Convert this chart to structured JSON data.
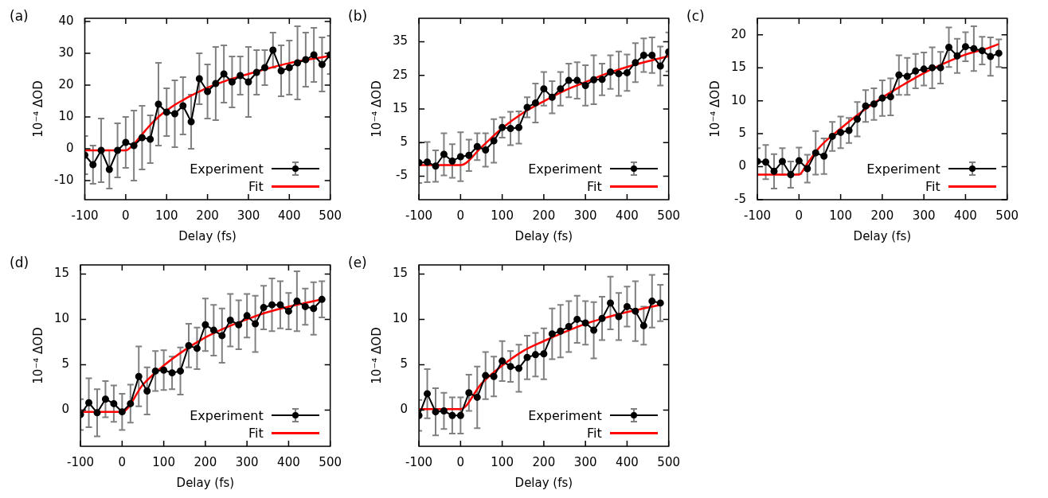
{
  "chart_data": [
    {
      "type": "line",
      "title": "(a)",
      "xlabel": "Delay (fs)",
      "ylabel": "10⁻⁴ ΔOD",
      "xlim": [
        -100,
        500
      ],
      "xticks": [
        -100,
        0,
        100,
        200,
        300,
        400,
        500
      ],
      "ylim": [
        -16,
        41
      ],
      "yticks": [
        -10,
        0,
        10,
        20,
        30,
        40
      ],
      "legend": "bottom right",
      "series": [
        {
          "name": "Experiment",
          "color": "#000000",
          "marker": "circle",
          "x": [
            -100,
            -80,
            -60,
            -40,
            -20,
            0,
            20,
            40,
            60,
            80,
            100,
            120,
            140,
            160,
            180,
            200,
            220,
            240,
            260,
            280,
            300,
            320,
            340,
            360,
            380,
            400,
            420,
            440,
            460,
            480,
            500
          ],
          "values": [
            -2,
            -5,
            -0.5,
            -6.5,
            -0.5,
            2,
            1,
            3.5,
            3,
            14,
            11.5,
            11,
            13.5,
            8.5,
            22,
            18,
            20.5,
            23.5,
            21,
            23,
            21,
            24,
            25.5,
            31,
            24.5,
            25.5,
            27,
            28,
            29.5,
            26.5,
            29.5
          ],
          "errors": [
            6,
            6,
            10,
            6,
            8.5,
            8,
            11,
            10,
            7.5,
            13,
            7.5,
            10.5,
            9,
            8.5,
            8,
            8.5,
            11.5,
            9,
            8,
            6,
            11,
            7,
            5.5,
            5.5,
            8,
            8.5,
            11.5,
            8.5,
            8.5,
            8.5,
            6
          ]
        },
        {
          "name": "Fit",
          "color": "#ff0000",
          "marker": "none",
          "x": [
            -100,
            0,
            20,
            40,
            60,
            80,
            100,
            120,
            140,
            160,
            180,
            200,
            250,
            300,
            350,
            400,
            450,
            500
          ],
          "values": [
            -0.5,
            -0.5,
            1.5,
            4.5,
            7.5,
            10,
            12,
            13.8,
            15.3,
            16.7,
            18,
            19.2,
            21.6,
            23.5,
            25.3,
            26.9,
            28.1,
            29.2
          ]
        }
      ]
    },
    {
      "type": "line",
      "title": "(b)",
      "xlabel": "Delay (fs)",
      "ylabel": "10⁻⁴ ΔOD",
      "xlim": [
        -100,
        500
      ],
      "xticks": [
        -100,
        0,
        100,
        200,
        300,
        400,
        500
      ],
      "ylim": [
        -12,
        42
      ],
      "yticks": [
        -5,
        5,
        15,
        25,
        35
      ],
      "legend": "bottom right",
      "series": [
        {
          "name": "Experiment",
          "color": "#000000",
          "marker": "circle",
          "x": [
            -100,
            -80,
            -60,
            -40,
            -20,
            0,
            20,
            40,
            60,
            80,
            100,
            120,
            140,
            160,
            180,
            200,
            220,
            240,
            260,
            280,
            300,
            320,
            340,
            360,
            380,
            400,
            420,
            440,
            460,
            480,
            500
          ],
          "values": [
            -1,
            -0.8,
            -2,
            1.5,
            -0.5,
            0.8,
            1.2,
            3.8,
            2.8,
            5.5,
            9.5,
            9.2,
            9.5,
            15.5,
            16.8,
            21,
            18.5,
            21,
            23.5,
            23.5,
            22,
            23.7,
            23.8,
            26,
            25.5,
            25.8,
            28.8,
            31,
            31,
            27.8,
            32
          ],
          "errors": [
            6,
            6,
            4.7,
            6.3,
            5,
            7.3,
            4.7,
            4,
            5,
            6.5,
            3,
            5,
            4.8,
            3,
            5.8,
            5,
            4.8,
            5,
            5,
            5.4,
            6,
            7.3,
            4.7,
            5,
            6.6,
            5.4,
            5.8,
            5,
            5.3,
            5.8,
            5.8
          ]
        },
        {
          "name": "Fit",
          "color": "#ff0000",
          "marker": "none",
          "x": [
            -100,
            0,
            50,
            100,
            150,
            200,
            250,
            300,
            350,
            400,
            450,
            500
          ],
          "values": [
            -1.7,
            -1.7,
            3.6,
            9.3,
            13.8,
            17.3,
            20.5,
            23,
            25.5,
            27.5,
            29.2,
            30.7
          ]
        }
      ]
    },
    {
      "type": "line",
      "title": "(c)",
      "xlabel": "Delay (fs)",
      "ylabel": "10⁻⁴ ΔOD",
      "xlim": [
        -100,
        500
      ],
      "xticks": [
        -100,
        0,
        100,
        200,
        300,
        400,
        500
      ],
      "ylim": [
        -5,
        22.5
      ],
      "yticks": [
        -5,
        0,
        5,
        10,
        15,
        20
      ],
      "legend": "bottom right",
      "series": [
        {
          "name": "Experiment",
          "color": "#000000",
          "marker": "circle",
          "x": [
            -100,
            -80,
            -60,
            -40,
            -20,
            0,
            20,
            40,
            60,
            80,
            100,
            120,
            140,
            160,
            180,
            200,
            220,
            240,
            260,
            280,
            300,
            320,
            340,
            360,
            380,
            400,
            420,
            440,
            460,
            480
          ],
          "values": [
            0.8,
            0.7,
            -0.7,
            0.8,
            -1.2,
            0.9,
            -0.3,
            2.1,
            1.6,
            4.6,
            5.2,
            5.5,
            7.2,
            9.2,
            9.5,
            10.4,
            10.6,
            13.9,
            13.7,
            14.5,
            14.8,
            15,
            15,
            18.1,
            16.8,
            18.2,
            17.9,
            17.6,
            16.7,
            17.2
          ],
          "errors": [
            2,
            2.6,
            2.6,
            2,
            2,
            2,
            2.1,
            3.3,
            2.7,
            2.2,
            2.4,
            1.9,
            2.6,
            2.4,
            2.4,
            2.7,
            2.8,
            3,
            2.8,
            2.6,
            2.5,
            3.1,
            2.4,
            3,
            2.6,
            2.2,
            3.4,
            2.1,
            2.9,
            2.1
          ]
        },
        {
          "name": "Fit",
          "color": "#ff0000",
          "marker": "none",
          "x": [
            -100,
            0,
            20,
            50,
            100,
            150,
            200,
            250,
            300,
            350,
            400,
            450,
            480
          ],
          "values": [
            -1.2,
            -1.2,
            0.5,
            3,
            5.8,
            8.3,
            10.5,
            12.4,
            14.2,
            15.7,
            17,
            17.9,
            18.6
          ]
        }
      ]
    },
    {
      "type": "line",
      "title": "(d)",
      "xlabel": "Delay (fs)",
      "ylabel": "10⁻⁴ ΔOD",
      "xlim": [
        -100,
        500
      ],
      "xticks": [
        -100,
        0,
        100,
        200,
        300,
        400,
        500
      ],
      "ylim": [
        -4,
        16
      ],
      "yticks": [
        0,
        5,
        10,
        15
      ],
      "legend": "bottom right",
      "series": [
        {
          "name": "Experiment",
          "color": "#000000",
          "marker": "circle",
          "x": [
            -100,
            -80,
            -60,
            -40,
            -20,
            0,
            20,
            40,
            60,
            80,
            100,
            120,
            140,
            160,
            180,
            200,
            220,
            240,
            260,
            280,
            300,
            320,
            340,
            360,
            380,
            400,
            420,
            440,
            460,
            480
          ],
          "values": [
            -0.5,
            0.8,
            -0.3,
            1.2,
            0.7,
            -0.2,
            0.7,
            3.7,
            2.1,
            4.3,
            4.4,
            4.1,
            4.3,
            7.1,
            6.8,
            9.4,
            8.8,
            8.2,
            9.9,
            9.4,
            10.4,
            9.5,
            11.3,
            11.6,
            11.6,
            10.9,
            12,
            11.4,
            11.2,
            12.2
          ],
          "errors": [
            1.7,
            2.7,
            2.6,
            2,
            2,
            2,
            2.1,
            3.3,
            2.6,
            2.2,
            2.2,
            1.8,
            2.6,
            2.4,
            2.3,
            2.9,
            2.8,
            3,
            2.9,
            2.7,
            2.4,
            3.1,
            2.4,
            2.9,
            2.6,
            2,
            3.3,
            2,
            2.9,
            2
          ]
        },
        {
          "name": "Fit",
          "color": "#ff0000",
          "marker": "none",
          "x": [
            -100,
            0,
            50,
            100,
            150,
            200,
            250,
            300,
            350,
            400,
            450,
            480
          ],
          "values": [
            -0.2,
            -0.2,
            2.8,
            4.9,
            6.6,
            8,
            9.1,
            10,
            10.8,
            11.4,
            11.9,
            12.2
          ]
        }
      ]
    },
    {
      "type": "line",
      "title": "(e)",
      "xlabel": "Delay (fs)",
      "ylabel": "10⁻⁴ ΔOD",
      "xlim": [
        -100,
        500
      ],
      "xticks": [
        -100,
        0,
        100,
        200,
        300,
        400,
        500
      ],
      "ylim": [
        -4,
        16
      ],
      "yticks": [
        0,
        5,
        10,
        15
      ],
      "legend": "bottom right",
      "series": [
        {
          "name": "Experiment",
          "color": "#000000",
          "marker": "circle",
          "x": [
            -100,
            -80,
            -60,
            -40,
            -20,
            0,
            20,
            40,
            60,
            80,
            100,
            120,
            140,
            160,
            180,
            200,
            220,
            240,
            260,
            280,
            300,
            320,
            340,
            360,
            380,
            400,
            420,
            440,
            460,
            480
          ],
          "values": [
            -0.6,
            1.8,
            -0.2,
            -0.1,
            -0.6,
            -0.6,
            1.9,
            1.4,
            3.8,
            3.7,
            5.4,
            4.8,
            4.6,
            5.8,
            6.1,
            6.2,
            8.4,
            8.7,
            9.2,
            10,
            9.6,
            8.8,
            10.1,
            11.8,
            10.3,
            11.4,
            10.9,
            9.3,
            12,
            11.8
          ],
          "errors": [
            1.7,
            2.7,
            2.6,
            2,
            2,
            2,
            2,
            3.4,
            2.6,
            2.2,
            2.2,
            1.7,
            2.6,
            2.4,
            2.4,
            2.8,
            2.8,
            2.9,
            2.8,
            2.6,
            2.4,
            3.1,
            2.4,
            2.9,
            2.6,
            2.2,
            3.3,
            2.1,
            2.9,
            2
          ]
        },
        {
          "name": "Fit",
          "color": "#ff0000",
          "marker": "none",
          "x": [
            -100,
            0,
            50,
            100,
            150,
            200,
            250,
            300,
            350,
            400,
            450,
            480
          ],
          "values": [
            0.1,
            0.1,
            2.9,
            4.9,
            6.5,
            7.6,
            8.6,
            9.5,
            10.2,
            10.8,
            11.3,
            11.6
          ]
        }
      ]
    }
  ]
}
